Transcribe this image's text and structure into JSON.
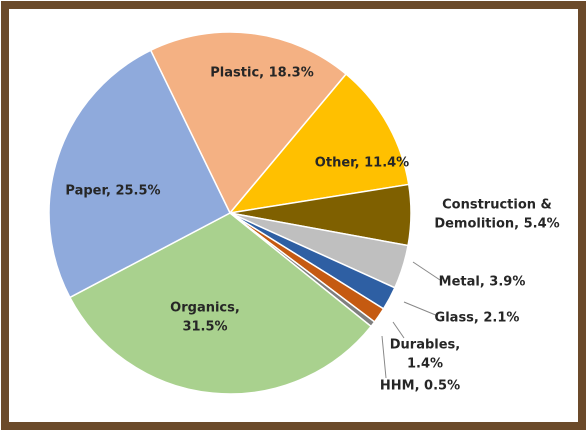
{
  "chart_data": {
    "type": "pie",
    "values": [
      18.3,
      11.4,
      5.4,
      3.9,
      2.1,
      1.4,
      0.5,
      31.5,
      25.5
    ],
    "labels": [
      [
        "Plastic, 18.3%"
      ],
      [
        "Other, 11.4%"
      ],
      [
        "Construction &",
        "Demolition, 5.4%"
      ],
      [
        "Metal, 3.9%"
      ],
      [
        "Glass, 2.1%"
      ],
      [
        "Durables,",
        "1.4%"
      ],
      [
        "HHM, 0.5%"
      ],
      [
        "Organics,",
        "31.5%"
      ],
      [
        "Paper, 25.5%"
      ]
    ],
    "colors": [
      "#f4b183",
      "#ffc000",
      "#7f6000",
      "#bfbfbf",
      "#2e5fa3",
      "#c55a11",
      "#7f7f7f",
      "#a9d18e",
      "#8faadc"
    ]
  }
}
